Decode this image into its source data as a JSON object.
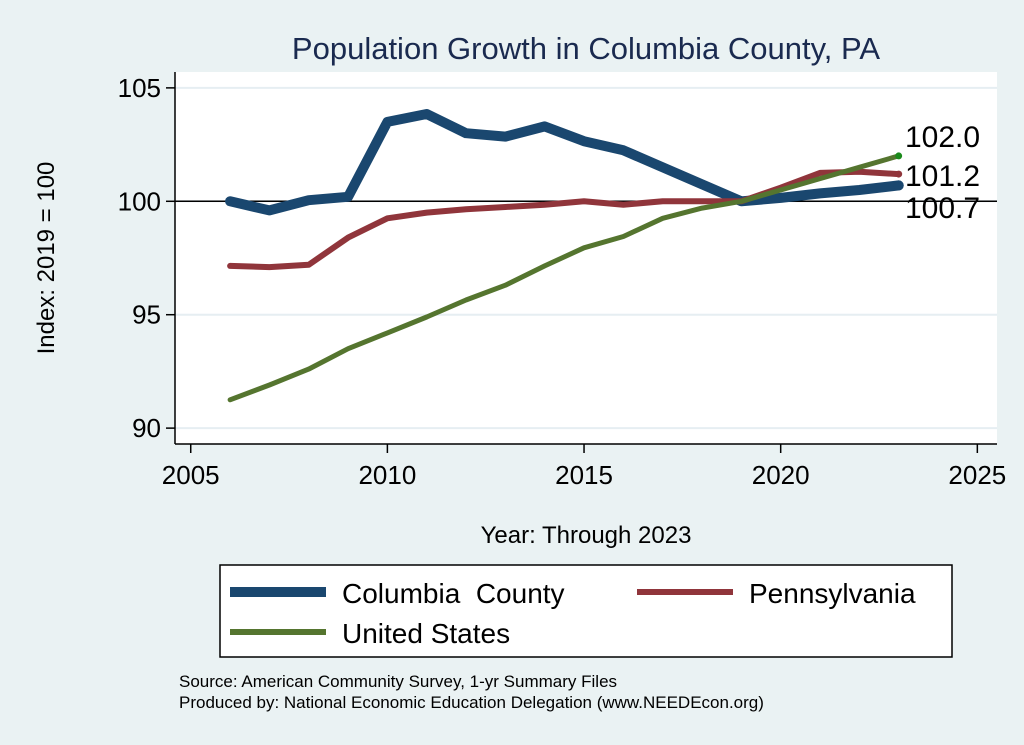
{
  "chart_data": {
    "type": "line",
    "title": "Population Growth in Columbia County, PA",
    "xlabel": "Year: Through 2023",
    "ylabel": "Index: 2019 = 100",
    "xlim": [
      2004.6,
      2025.5
    ],
    "ylim": [
      89.3,
      105.7
    ],
    "xticks": [
      2005,
      2010,
      2015,
      2020,
      2025
    ],
    "yticks": [
      90,
      95,
      100,
      105
    ],
    "grid": true,
    "reference_line": 100,
    "legend_position": "bottom",
    "x": [
      2006,
      2007,
      2008,
      2009,
      2010,
      2011,
      2012,
      2013,
      2014,
      2015,
      2016,
      2017,
      2018,
      2019,
      2020,
      2021,
      2022,
      2023
    ],
    "series": [
      {
        "name": "Columbia  County",
        "color": "#1a476f",
        "values": [
          100.0,
          99.6,
          100.05,
          100.2,
          103.5,
          103.85,
          103.0,
          102.85,
          103.3,
          102.65,
          102.25,
          101.5,
          100.75,
          100.0,
          100.15,
          100.35,
          100.5,
          100.7
        ],
        "end_label": "100.7"
      },
      {
        "name": "Pennsylvania",
        "color": "#90353b",
        "values": [
          97.15,
          97.1,
          97.2,
          98.4,
          99.25,
          99.5,
          99.65,
          99.75,
          99.85,
          100.0,
          99.85,
          100.0,
          100.0,
          100.0,
          100.6,
          101.25,
          101.3,
          101.2
        ],
        "end_label": "101.2"
      },
      {
        "name": "United States",
        "color": "#55752f",
        "values": [
          91.25,
          91.9,
          92.6,
          93.5,
          94.2,
          94.9,
          95.65,
          96.3,
          97.15,
          97.95,
          98.45,
          99.25,
          99.7,
          100.0,
          100.5,
          101.0,
          101.5,
          102.0
        ],
        "end_label": "102.0"
      }
    ],
    "notes": [
      "Source: American Community Survey, 1-yr Summary Files",
      "Produced by: National Economic Education Delegation (www.NEEDEcon.org)"
    ]
  }
}
